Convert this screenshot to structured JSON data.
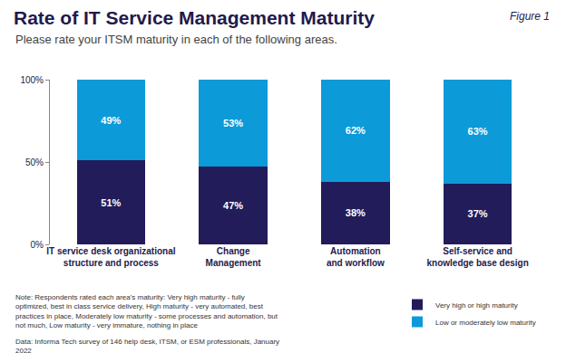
{
  "chart_data": {
    "type": "bar",
    "stacked": true,
    "title": "Rate of IT Service Management Maturity",
    "subtitle": "Please rate your ITSM maturity in each of the following areas.",
    "annotations": [
      "Figure 1",
      "Note: Respondents rated each area's maturity: Very high maturity - fully optimized, best in class service delivery, High maturity - very automated, best practices in place, Moderately low maturity - some processes and automation, but not much, Low maturity - very immature, nothing in place",
      "Data: Informa Tech survey of 146 help desk, ITSM, or ESM professionals, January 2022"
    ],
    "categories": [
      "IT service desk organizational\nstructure and process",
      "Change\nManagement",
      "Automation\nand workflow",
      "Self-service and\nknowledge base design"
    ],
    "series": [
      {
        "name": "Very high or high maturity",
        "color": "#221c5a",
        "values": [
          51,
          47,
          38,
          37
        ],
        "value_labels": [
          "51%",
          "47%",
          "38%",
          "37%"
        ]
      },
      {
        "name": "Low or moderately low maturity",
        "color": "#0d9ad9",
        "values": [
          49,
          53,
          62,
          63
        ],
        "value_labels": [
          "49%",
          "53%",
          "62%",
          "63%"
        ]
      }
    ],
    "ylim": [
      0,
      100
    ],
    "yticks": [
      {
        "value": 0,
        "label": "0%"
      },
      {
        "value": 50,
        "label": "50%"
      },
      {
        "value": 100,
        "label": "100%"
      }
    ],
    "grid": false,
    "legend": "bottom right",
    "data_labels": true
  }
}
